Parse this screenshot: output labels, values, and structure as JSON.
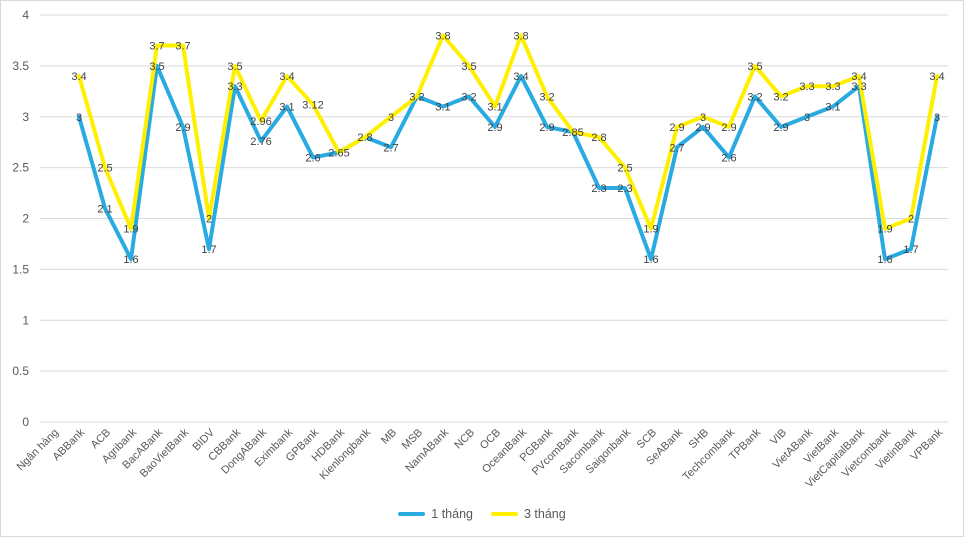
{
  "chart_data": {
    "type": "line",
    "title": "",
    "xlabel": "",
    "ylabel": "",
    "categories": [
      "Ngân hàng",
      "ABBank",
      "ACB",
      "Agribank",
      "BacABank",
      "BaoVietBank",
      "BIDV",
      "CBBank",
      "DongABank",
      "Eximbank",
      "GPBank",
      "HDBank",
      "Kienlongbank",
      "MB",
      "MSB",
      "NamABank",
      "NCB",
      "OCB",
      "OceanBank",
      "PGBank",
      "PVcomBank",
      "Sacombank",
      "Saigonbank",
      "SCB",
      "SeABank",
      "SHB",
      "Techcombank",
      "TPBank",
      "VIB",
      "VietABank",
      "VietBank",
      "VietCapitalBank",
      "Vietcombank",
      "VietinBank",
      "VPBank"
    ],
    "series": [
      {
        "name": "1 tháng",
        "color": "#29ABE2",
        "values": [
          null,
          3,
          2.1,
          1.6,
          3.5,
          2.9,
          1.7,
          3.3,
          2.76,
          3.1,
          2.6,
          2.65,
          2.8,
          2.7,
          3.2,
          3.1,
          3.2,
          2.9,
          3.4,
          2.9,
          2.85,
          2.3,
          2.3,
          1.6,
          2.7,
          2.9,
          2.6,
          3.2,
          2.9,
          3,
          3.1,
          3.3,
          1.6,
          1.7,
          3
        ]
      },
      {
        "name": "3 tháng",
        "color": "#FFF000",
        "values": [
          null,
          3.4,
          2.5,
          1.9,
          3.7,
          3.7,
          2,
          3.5,
          2.96,
          3.4,
          3.12,
          2.65,
          2.8,
          3,
          3.2,
          3.8,
          3.5,
          3.1,
          3.8,
          3.2,
          2.85,
          2.8,
          2.5,
          1.9,
          2.9,
          3,
          2.9,
          3.5,
          3.2,
          3.3,
          3.3,
          3.4,
          1.9,
          2,
          3.4
        ]
      }
    ],
    "ylim": [
      0,
      4
    ],
    "ystep": 0.5,
    "y_tick_labels": [
      "0",
      "0.5",
      "1",
      "1.5",
      "2",
      "2.5",
      "3",
      "3.5",
      "4"
    ],
    "grid": true,
    "data_labels": true,
    "legend_position": "bottom",
    "colors": {
      "gridline": "#D9D9D9",
      "frame_border": "#D9D9D9",
      "axis_text": "#595959",
      "data_label_text": "#404040",
      "background": "#FFFFFF"
    }
  }
}
